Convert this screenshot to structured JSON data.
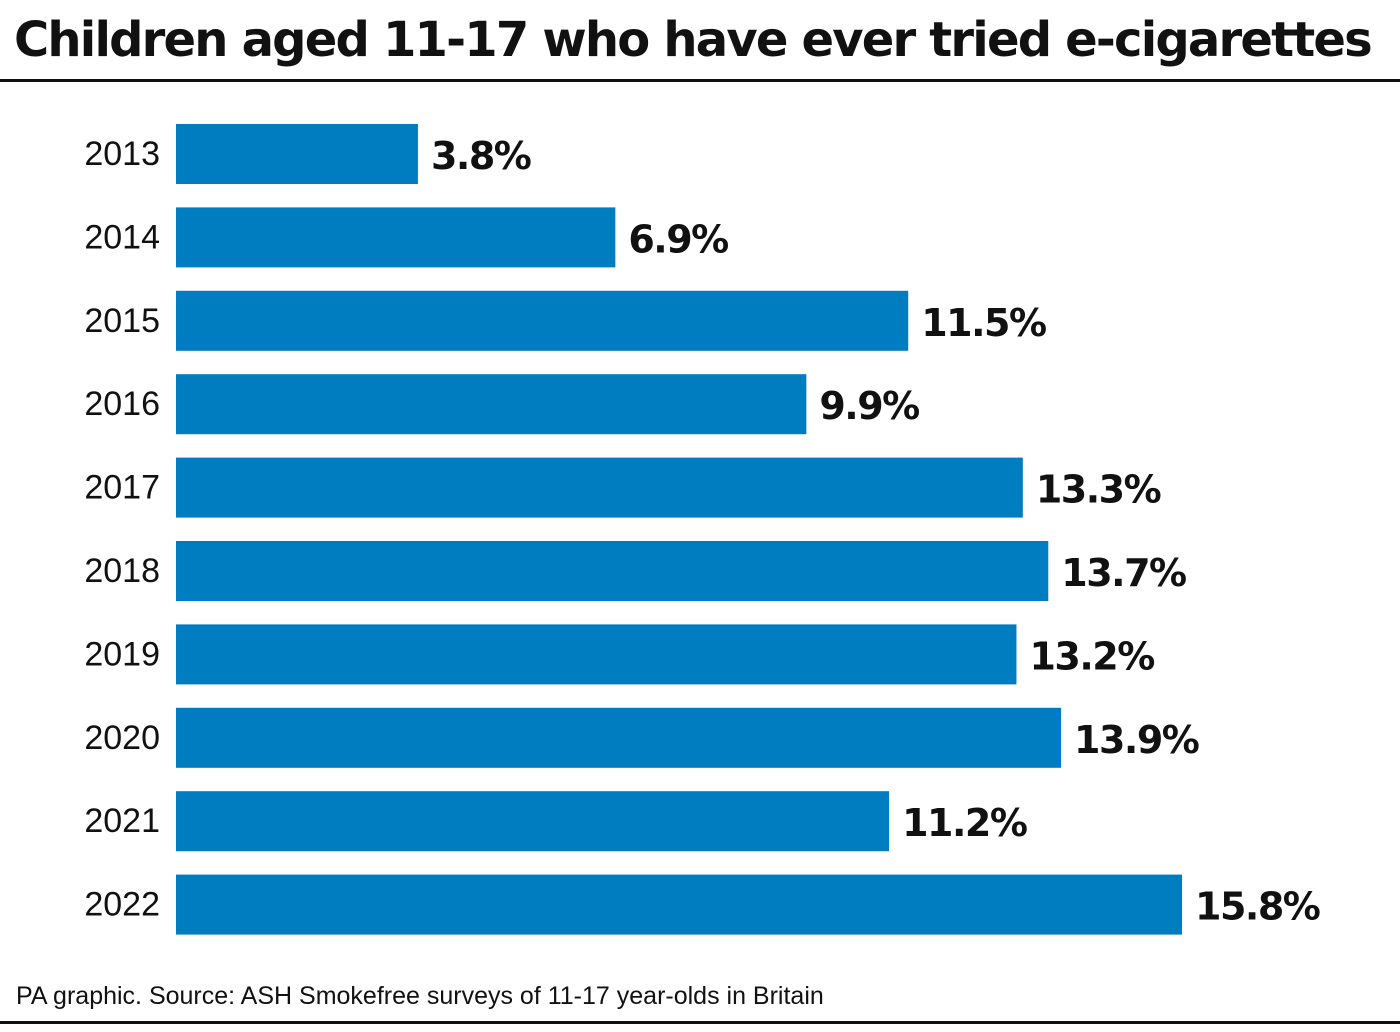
{
  "title": "Children aged 11-17 who have ever tried e-cigarettes",
  "source": "PA graphic. Source: ASH Smokefree surveys of 11-17 year-olds in Britain",
  "colors": {
    "bar": "#007cc0",
    "text": "#111111"
  },
  "chart_data": {
    "type": "bar",
    "orientation": "horizontal",
    "categories": [
      "2013",
      "2014",
      "2015",
      "2016",
      "2017",
      "2018",
      "2019",
      "2020",
      "2021",
      "2022"
    ],
    "values": [
      3.8,
      6.9,
      11.5,
      9.9,
      13.3,
      13.7,
      13.2,
      13.9,
      11.2,
      15.8
    ],
    "value_labels": [
      "3.8%",
      "6.9%",
      "11.5%",
      "9.9%",
      "13.3%",
      "13.7%",
      "13.2%",
      "13.9%",
      "11.2%",
      "15.8%"
    ],
    "title": "Children aged 11-17 who have ever tried e-cigarettes",
    "xlabel": "",
    "ylabel": "",
    "xlim": [
      0,
      15.8
    ],
    "grid": false,
    "legend": "none"
  }
}
